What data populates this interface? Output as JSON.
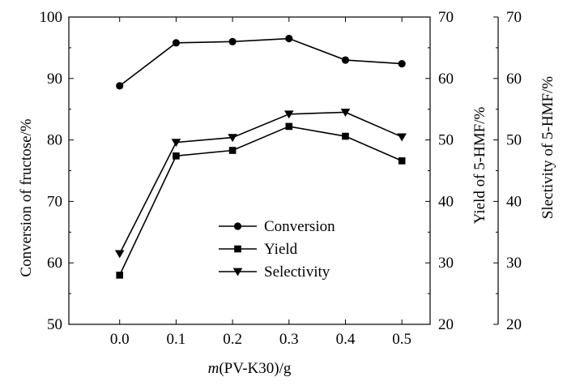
{
  "chart_data": {
    "type": "line",
    "x": [
      0.0,
      0.1,
      0.2,
      0.3,
      0.4,
      0.5
    ],
    "x_tick_labels": [
      "0.0",
      "0.1",
      "0.2",
      "0.3",
      "0.4",
      "0.5"
    ],
    "xlim": [
      -0.09,
      0.55
    ],
    "xlabel_italic": "m",
    "xlabel_rest": "(PV-K30)/g",
    "axes": {
      "left": {
        "label": "Conversion of fructose/%",
        "ylim": [
          50,
          100
        ],
        "ticks": [
          50,
          60,
          70,
          80,
          90,
          100
        ]
      },
      "right": {
        "label": "Yield of 5-HMF/%",
        "ylim": [
          20,
          70
        ],
        "ticks": [
          20,
          30,
          40,
          50,
          60,
          70
        ]
      },
      "right2": {
        "label": "Slectivity of 5-HMF/%",
        "ylim": [
          20,
          70
        ],
        "ticks": [
          20,
          30,
          40,
          50,
          60,
          70
        ]
      }
    },
    "series": [
      {
        "name": "Conversion",
        "axis": "left",
        "marker": "circle",
        "values": [
          88.8,
          95.8,
          96.0,
          96.5,
          93.0,
          92.4
        ]
      },
      {
        "name": "Yield",
        "axis": "right",
        "marker": "square",
        "values": [
          28.0,
          47.4,
          48.3,
          52.2,
          50.6,
          46.6
        ]
      },
      {
        "name": "Selectivity",
        "axis": "right2",
        "marker": "triangle-down",
        "values": [
          31.5,
          49.6,
          50.4,
          54.2,
          54.5,
          50.5
        ]
      }
    ],
    "legend_position": "center",
    "grid": false
  }
}
